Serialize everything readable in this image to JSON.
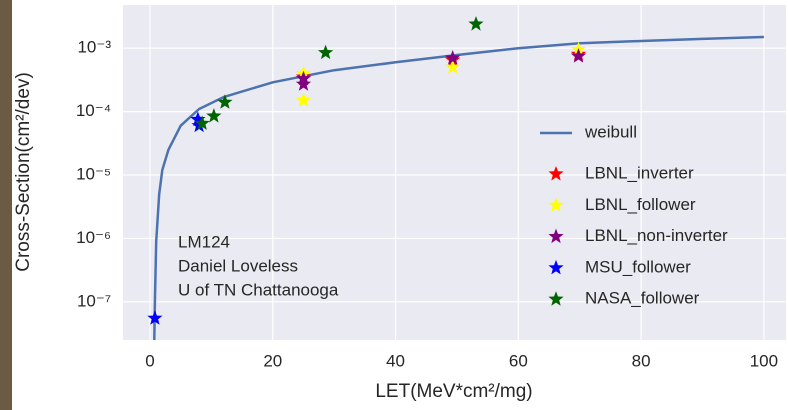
{
  "chart_data": {
    "type": "scatter",
    "xlabel": "LET(MeV*cm²/mg)",
    "ylabel": "Cross-Section(cm²/dev)",
    "annotation": [
      "LM124",
      "Daniel Loveless",
      "U of TN Chattanooga"
    ],
    "xlim": [
      -4.4,
      103.6
    ],
    "ylim": [
      2.5e-08,
      0.0048
    ],
    "ylog": true,
    "grid": true,
    "legend": "lower right",
    "xticks": [
      0,
      20,
      40,
      60,
      80,
      100
    ],
    "yticks": [
      {
        "value": 1e-07,
        "label": "10⁻⁷"
      },
      {
        "value": 1e-06,
        "label": "10⁻⁶"
      },
      {
        "value": 1e-05,
        "label": "10⁻⁵"
      },
      {
        "value": 0.0001,
        "label": "10⁻⁴"
      },
      {
        "value": 0.001,
        "label": "10⁻³"
      }
    ],
    "series": [
      {
        "name": "weibull",
        "type": "line",
        "color": "#4c72b0",
        "x": [
          0.7,
          0.8,
          1,
          1.5,
          2,
          3,
          5,
          8,
          12,
          20,
          30,
          40,
          50,
          60,
          70,
          80,
          90,
          100
        ],
        "values": [
          2.5e-08,
          1e-07,
          9e-07,
          5e-06,
          1.2e-05,
          2.5e-05,
          6e-05,
          0.00011,
          0.00017,
          0.00029,
          0.00045,
          0.0006,
          0.00078,
          0.001,
          0.0012,
          0.0013,
          0.0014,
          0.0015
        ]
      },
      {
        "name": "LBNL_inverter",
        "type": "scatter",
        "color": "#ff0000",
        "x": [
          25,
          49.3,
          69.8
        ],
        "values": [
          0.00035,
          0.00065,
          0.0008
        ]
      },
      {
        "name": "LBNL_follower",
        "type": "scatter",
        "color": "#ffff00",
        "x": [
          25,
          25,
          49.3,
          69.8
        ],
        "values": [
          0.0004,
          0.00015,
          0.0005,
          0.00095
        ]
      },
      {
        "name": "LBNL_non-inverter",
        "type": "scatter",
        "color": "#800080",
        "x": [
          25,
          25,
          49.3,
          69.8
        ],
        "values": [
          0.00033,
          0.00027,
          0.0007,
          0.00075
        ]
      },
      {
        "name": "MSU_follower",
        "type": "scatter",
        "color": "#0000ff",
        "x": [
          0.8,
          7.8,
          8.0
        ],
        "values": [
          5.5e-08,
          7.5e-05,
          6e-05
        ]
      },
      {
        "name": "NASA_follower",
        "type": "scatter",
        "color": "#006400",
        "x": [
          8.5,
          10.4,
          12.2,
          28.6,
          53.1
        ],
        "values": [
          6.5e-05,
          8.5e-05,
          0.00014,
          0.00085,
          0.0024
        ]
      }
    ]
  }
}
